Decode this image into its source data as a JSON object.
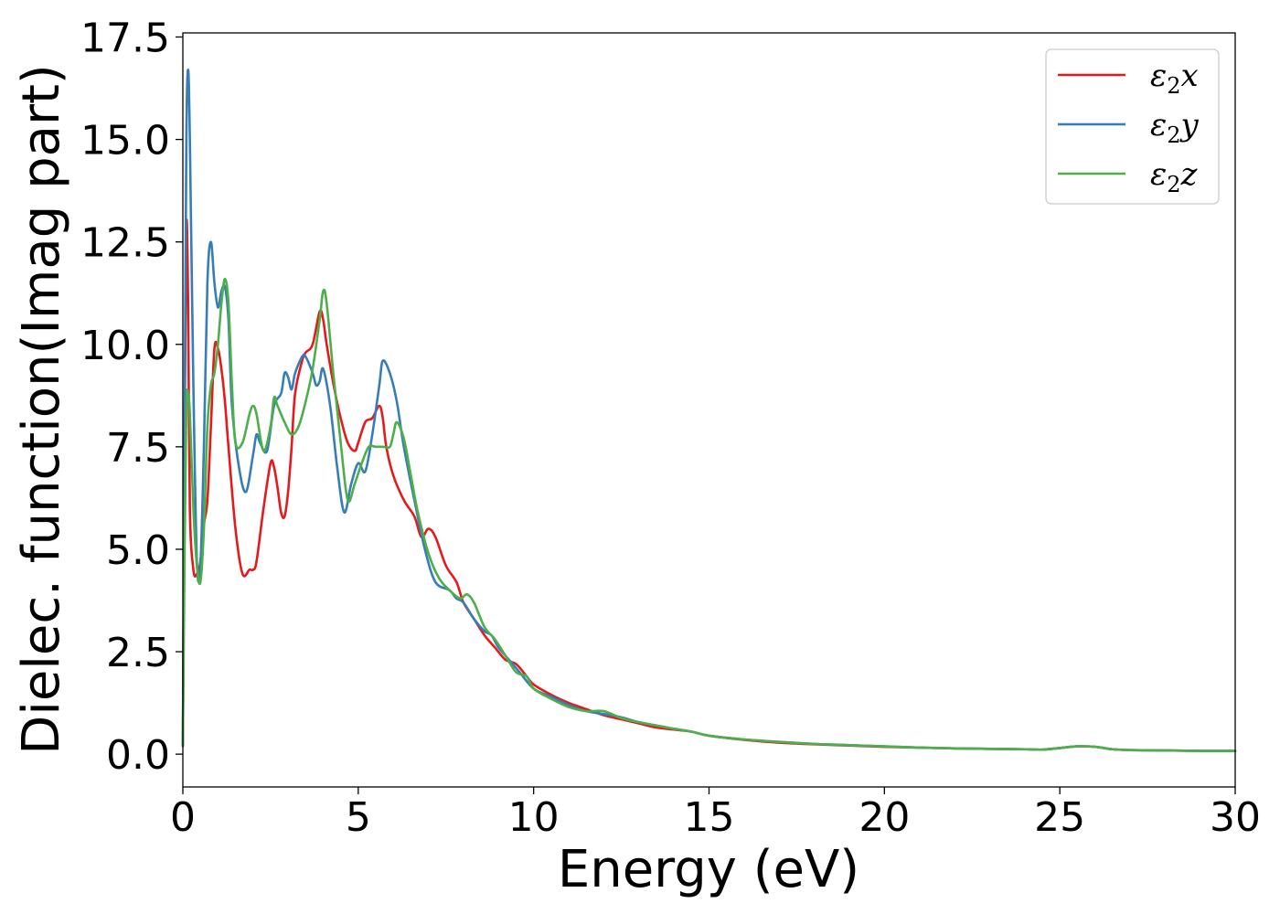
{
  "chart_data": {
    "type": "line",
    "title": "",
    "xlabel": "Energy (eV)",
    "ylabel": "Dielec. function(Imag part)",
    "xlim": [
      0,
      30
    ],
    "ylim": [
      -0.8,
      17.6
    ],
    "xticks": [
      0,
      5,
      10,
      15,
      20,
      25,
      30
    ],
    "xtick_labels": [
      "0",
      "5",
      "10",
      "15",
      "20",
      "25",
      "30"
    ],
    "yticks": [
      0.0,
      2.5,
      5.0,
      7.5,
      10.0,
      12.5,
      15.0,
      17.5
    ],
    "ytick_labels": [
      "0.0",
      "2.5",
      "5.0",
      "7.5",
      "10.0",
      "12.5",
      "15.0",
      "17.5"
    ],
    "grid": false,
    "legend_position": "top-right",
    "series": [
      {
        "name": "ε2x",
        "legend_base": "ε",
        "legend_sub": "2",
        "legend_suffix": "x",
        "color": "#e41a1c",
        "x": [
          0,
          0.05,
          0.1,
          0.15,
          0.2,
          0.3,
          0.4,
          0.5,
          0.6,
          0.7,
          0.8,
          0.9,
          1.0,
          1.1,
          1.2,
          1.3,
          1.5,
          1.7,
          1.9,
          2.0,
          2.1,
          2.3,
          2.5,
          2.6,
          2.7,
          2.8,
          2.9,
          3.0,
          3.1,
          3.2,
          3.4,
          3.5,
          3.7,
          3.9,
          4.0,
          4.1,
          4.3,
          4.5,
          4.7,
          4.9,
          5.0,
          5.2,
          5.4,
          5.6,
          5.7,
          5.8,
          6.0,
          6.3,
          6.6,
          6.8,
          7.0,
          7.2,
          7.5,
          7.8,
          8.0,
          8.3,
          8.6,
          8.9,
          9.2,
          9.5,
          9.8,
          10.0,
          10.5,
          11.0,
          11.5,
          12.0,
          12.5,
          13.0,
          13.5,
          14.0,
          14.5,
          15.0,
          16.0,
          17.0,
          18.0,
          19.0,
          20.0,
          21.0,
          22.0,
          23.0,
          24.0,
          24.5,
          25.0,
          25.5,
          26.0,
          26.5,
          27.0,
          28.0,
          29.0,
          30.0
        ],
        "y": [
          0.2,
          7.5,
          12.9,
          11.0,
          6.0,
          4.5,
          4.4,
          4.7,
          5.6,
          6.2,
          8.0,
          9.9,
          9.9,
          9.4,
          8.6,
          7.5,
          5.5,
          4.4,
          4.5,
          4.5,
          4.7,
          6.0,
          7.1,
          7.0,
          6.5,
          5.9,
          5.8,
          6.4,
          7.5,
          8.8,
          9.6,
          9.8,
          10.0,
          10.8,
          10.6,
          10.0,
          9.0,
          8.2,
          7.6,
          7.4,
          7.6,
          8.1,
          8.2,
          8.5,
          8.2,
          7.5,
          6.8,
          6.2,
          5.8,
          5.3,
          5.5,
          5.3,
          4.6,
          4.2,
          3.7,
          3.3,
          2.9,
          2.6,
          2.3,
          2.2,
          1.9,
          1.7,
          1.45,
          1.25,
          1.1,
          0.95,
          0.85,
          0.75,
          0.65,
          0.6,
          0.55,
          0.45,
          0.35,
          0.28,
          0.24,
          0.21,
          0.18,
          0.16,
          0.14,
          0.13,
          0.12,
          0.11,
          0.15,
          0.19,
          0.18,
          0.12,
          0.1,
          0.09,
          0.08,
          0.08
        ]
      },
      {
        "name": "ε2y",
        "legend_base": "ε",
        "legend_sub": "2",
        "legend_suffix": "y",
        "color": "#377eb8",
        "x": [
          0,
          0.05,
          0.1,
          0.15,
          0.2,
          0.3,
          0.4,
          0.5,
          0.6,
          0.7,
          0.8,
          0.9,
          1.0,
          1.1,
          1.2,
          1.3,
          1.4,
          1.6,
          1.8,
          2.0,
          2.1,
          2.2,
          2.4,
          2.6,
          2.8,
          2.9,
          3.0,
          3.1,
          3.2,
          3.4,
          3.5,
          3.7,
          3.8,
          3.9,
          4.0,
          4.2,
          4.4,
          4.6,
          4.8,
          5.0,
          5.2,
          5.4,
          5.6,
          5.7,
          5.9,
          6.1,
          6.3,
          6.6,
          6.9,
          7.2,
          7.6,
          7.8,
          8.0,
          8.3,
          8.6,
          8.8,
          9.0,
          9.3,
          9.6,
          10.0,
          10.5,
          11.0,
          11.5,
          12.0,
          12.5,
          13.0,
          13.5,
          14.0,
          14.5,
          15.0,
          16.0,
          17.0,
          18.0,
          19.0,
          20.0,
          21.0,
          22.0,
          23.0,
          24.0,
          24.5,
          25.0,
          25.5,
          26.0,
          26.5,
          27.0,
          28.0,
          29.0,
          30.0
        ],
        "y": [
          0.2,
          8.0,
          15.0,
          16.7,
          15.0,
          9.0,
          4.7,
          4.6,
          7.5,
          11.5,
          12.5,
          11.5,
          10.9,
          11.3,
          11.4,
          10.6,
          8.5,
          7.0,
          6.4,
          7.3,
          7.8,
          7.6,
          7.4,
          8.5,
          8.8,
          9.3,
          9.2,
          8.9,
          9.3,
          9.7,
          9.7,
          9.3,
          9.0,
          9.1,
          9.4,
          8.5,
          7.0,
          5.9,
          6.6,
          7.1,
          6.9,
          7.8,
          9.0,
          9.6,
          9.3,
          8.6,
          7.5,
          6.2,
          5.0,
          4.2,
          4.0,
          3.8,
          3.7,
          3.3,
          3.0,
          2.9,
          2.6,
          2.3,
          2.0,
          1.6,
          1.4,
          1.2,
          1.05,
          0.98,
          0.9,
          0.78,
          0.7,
          0.62,
          0.55,
          0.45,
          0.36,
          0.3,
          0.25,
          0.22,
          0.19,
          0.16,
          0.14,
          0.13,
          0.12,
          0.11,
          0.15,
          0.19,
          0.18,
          0.12,
          0.1,
          0.09,
          0.08,
          0.08
        ]
      },
      {
        "name": "ε2z",
        "legend_base": "ε",
        "legend_sub": "2",
        "legend_suffix": "z",
        "color": "#4daf4a",
        "x": [
          0,
          0.05,
          0.1,
          0.15,
          0.2,
          0.3,
          0.4,
          0.5,
          0.6,
          0.7,
          0.8,
          0.9,
          1.0,
          1.1,
          1.2,
          1.3,
          1.4,
          1.5,
          1.7,
          1.9,
          2.0,
          2.1,
          2.3,
          2.5,
          2.6,
          2.7,
          2.9,
          3.1,
          3.3,
          3.5,
          3.7,
          3.9,
          4.0,
          4.1,
          4.3,
          4.5,
          4.7,
          4.9,
          5.1,
          5.3,
          5.5,
          5.7,
          5.9,
          6.0,
          6.1,
          6.3,
          6.5,
          6.7,
          7.0,
          7.3,
          7.6,
          7.9,
          8.1,
          8.3,
          8.6,
          8.9,
          9.2,
          9.5,
          9.8,
          10.0,
          10.5,
          11.0,
          11.5,
          12.0,
          12.5,
          13.0,
          13.5,
          14.0,
          14.5,
          15.0,
          16.0,
          17.0,
          18.0,
          19.0,
          20.0,
          21.0,
          22.0,
          23.0,
          24.0,
          24.5,
          25.0,
          25.5,
          26.0,
          26.5,
          27.0,
          28.0,
          29.0,
          30.0
        ],
        "y": [
          0.2,
          5.0,
          8.5,
          8.8,
          8.3,
          6.0,
          4.6,
          4.2,
          5.5,
          8.0,
          9.0,
          9.3,
          10.0,
          11.0,
          11.6,
          11.0,
          9.0,
          7.6,
          7.6,
          8.3,
          8.5,
          8.3,
          7.4,
          8.0,
          8.7,
          8.5,
          8.1,
          7.8,
          8.0,
          8.6,
          9.4,
          10.6,
          11.3,
          11.0,
          9.2,
          7.6,
          6.2,
          6.6,
          7.1,
          7.5,
          7.5,
          7.5,
          7.5,
          7.8,
          8.1,
          7.7,
          6.8,
          5.9,
          4.9,
          4.3,
          4.0,
          3.8,
          3.9,
          3.7,
          3.1,
          2.8,
          2.4,
          2.0,
          1.9,
          1.6,
          1.35,
          1.15,
          1.05,
          1.05,
          0.88,
          0.78,
          0.7,
          0.62,
          0.55,
          0.45,
          0.36,
          0.3,
          0.25,
          0.22,
          0.19,
          0.16,
          0.14,
          0.13,
          0.12,
          0.11,
          0.15,
          0.19,
          0.18,
          0.12,
          0.1,
          0.09,
          0.08,
          0.08
        ]
      }
    ]
  }
}
